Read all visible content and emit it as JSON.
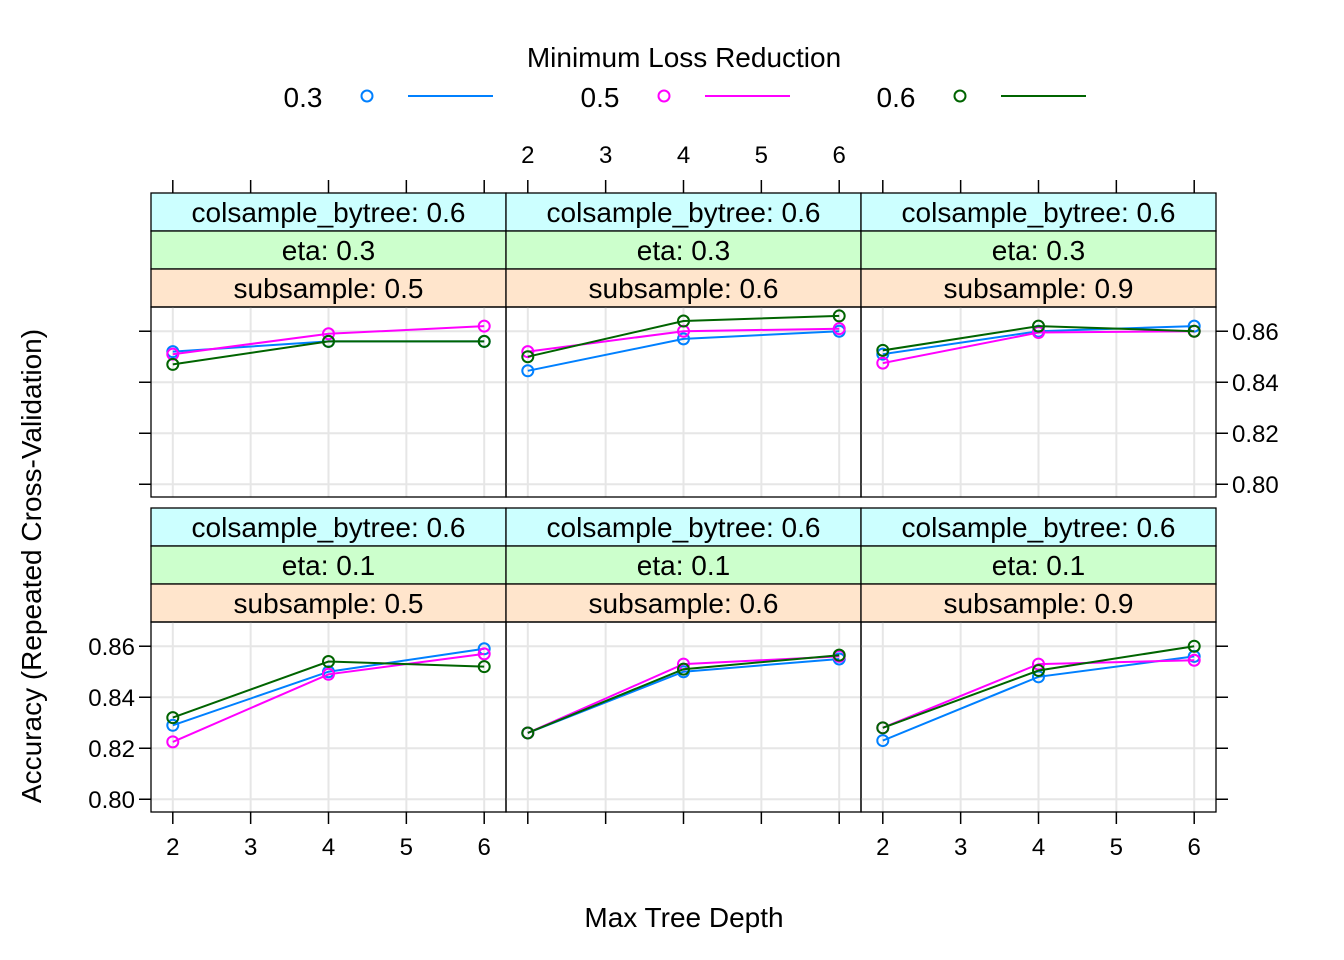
{
  "chart_data": {
    "type": "line",
    "legend_title": "Minimum Loss Reduction",
    "legend_placement": "top",
    "xlabel": "Max Tree Depth",
    "ylabel": "Accuracy (Repeated Cross-Validation)",
    "xlim": [
      1.72,
      6.28
    ],
    "ylim": [
      0.795,
      0.8695
    ],
    "x_ticks": [
      2,
      3,
      4,
      5,
      6
    ],
    "y_ticks": [
      0.8,
      0.82,
      0.84,
      0.86
    ],
    "y_tick_labels": [
      "0.80",
      "0.82",
      "0.84",
      "0.86"
    ],
    "grid": true,
    "series": [
      {
        "name": "0.3",
        "color": "#0080ff"
      },
      {
        "name": "0.5",
        "color": "#ff00ff"
      },
      {
        "name": "0.6",
        "color": "#006400"
      }
    ],
    "x": [
      2,
      4,
      6
    ],
    "panels": [
      {
        "strips": {
          "colsample": "colsample_bytree: 0.6",
          "eta": "eta: 0.3",
          "subsample": "subsample: 0.5"
        },
        "values": [
          [
            0.852,
            0.856,
            0.856
          ],
          [
            0.851,
            0.859,
            0.862
          ],
          [
            0.847,
            0.856,
            0.856
          ]
        ]
      },
      {
        "strips": {
          "colsample": "colsample_bytree: 0.6",
          "eta": "eta: 0.3",
          "subsample": "subsample: 0.6"
        },
        "values": [
          [
            0.8445,
            0.857,
            0.86
          ],
          [
            0.852,
            0.86,
            0.861
          ],
          [
            0.85,
            0.864,
            0.866
          ]
        ]
      },
      {
        "strips": {
          "colsample": "colsample_bytree: 0.6",
          "eta": "eta: 0.3",
          "subsample": "subsample: 0.9"
        },
        "values": [
          [
            0.851,
            0.86,
            0.862
          ],
          [
            0.8475,
            0.8595,
            0.86
          ],
          [
            0.8525,
            0.862,
            0.86
          ]
        ]
      },
      {
        "strips": {
          "colsample": "colsample_bytree: 0.6",
          "eta": "eta: 0.1",
          "subsample": "subsample: 0.5"
        },
        "values": [
          [
            0.829,
            0.85,
            0.859
          ],
          [
            0.8225,
            0.849,
            0.857
          ],
          [
            0.832,
            0.854,
            0.852
          ]
        ]
      },
      {
        "strips": {
          "colsample": "colsample_bytree: 0.6",
          "eta": "eta: 0.1",
          "subsample": "subsample: 0.6"
        },
        "values": [
          [
            0.826,
            0.85,
            0.855
          ],
          [
            0.826,
            0.853,
            0.856
          ],
          [
            0.826,
            0.851,
            0.8565
          ]
        ]
      },
      {
        "strips": {
          "colsample": "colsample_bytree: 0.6",
          "eta": "eta: 0.1",
          "subsample": "subsample: 0.9"
        },
        "values": [
          [
            0.823,
            0.848,
            0.856
          ],
          [
            0.828,
            0.853,
            0.8545
          ],
          [
            0.828,
            0.8505,
            0.86
          ]
        ]
      }
    ]
  }
}
